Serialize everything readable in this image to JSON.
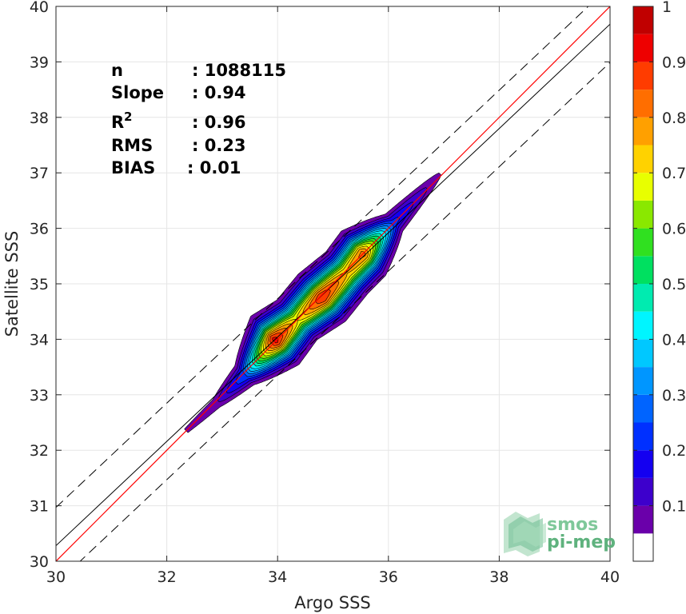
{
  "chart_data": {
    "type": "heatmap",
    "subtype": "2d-density-contour",
    "xlabel": "Argo SSS",
    "ylabel": "Satellite SSS",
    "xlim": [
      30,
      40
    ],
    "ylim": [
      30,
      40
    ],
    "x_ticks": [
      "30",
      "32",
      "34",
      "36",
      "38",
      "40"
    ],
    "y_ticks": [
      "30",
      "31",
      "32",
      "33",
      "34",
      "35",
      "36",
      "37",
      "38",
      "39",
      "40"
    ],
    "grid": true,
    "stats": [
      {
        "label": "n",
        "value": ": 1088115"
      },
      {
        "label": "Slope",
        "value": ": 0.94"
      },
      {
        "label": "R",
        "superscript": "2",
        "value": ": 0.96"
      },
      {
        "label": "RMS",
        "value": ": 0.23"
      },
      {
        "label": "BIAS",
        "value": ": 0.01"
      }
    ],
    "reference_lines": {
      "identity": {
        "slope": 1,
        "intercept": 0,
        "color": "#ff0000"
      },
      "fit": {
        "slope": 0.94,
        "intercept": 2.08,
        "color": "#000000"
      },
      "fit_bands": {
        "offset": 0.69,
        "style": "dashed",
        "color": "#000000"
      }
    },
    "density": {
      "ridge": [
        {
          "x": 32.35,
          "y": 32.35,
          "d": 0.06
        },
        {
          "x": 32.9,
          "y": 32.85,
          "d": 0.09
        },
        {
          "x": 33.4,
          "y": 33.35,
          "d": 0.25
        },
        {
          "x": 33.95,
          "y": 33.98,
          "d": 0.93
        },
        {
          "x": 34.35,
          "y": 34.35,
          "d": 0.7
        },
        {
          "x": 34.8,
          "y": 34.75,
          "d": 0.9
        },
        {
          "x": 35.25,
          "y": 35.2,
          "d": 0.75
        },
        {
          "x": 35.55,
          "y": 35.55,
          "d": 0.82
        },
        {
          "x": 36.1,
          "y": 36.1,
          "d": 0.22
        },
        {
          "x": 36.95,
          "y": 37.0,
          "d": 0.05
        }
      ]
    },
    "colorbar": {
      "ticks": [
        "0.1",
        "0.2",
        "0.3",
        "0.4",
        "0.5",
        "0.6",
        "0.7",
        "0.8",
        "0.9",
        "1"
      ],
      "levels": [
        0.05,
        0.1,
        0.15,
        0.2,
        0.25,
        0.3,
        0.35,
        0.4,
        0.45,
        0.5,
        0.55,
        0.6,
        0.65,
        0.7,
        0.75,
        0.8,
        0.85,
        0.9,
        0.95,
        1.0
      ],
      "colors": [
        "#ffffff",
        "#6a00aa",
        "#3d00cc",
        "#1400f0",
        "#0030ff",
        "#0064ff",
        "#0096ff",
        "#00c8ff",
        "#00f5ff",
        "#00ebb0",
        "#00e060",
        "#30e020",
        "#8ae800",
        "#e8ff00",
        "#ffd200",
        "#ffa000",
        "#ff6e00",
        "#ff3c00",
        "#ee0000",
        "#c00000",
        "#8c0000"
      ]
    }
  },
  "logo": {
    "line1": "smos",
    "line2": "pi-mep"
  }
}
